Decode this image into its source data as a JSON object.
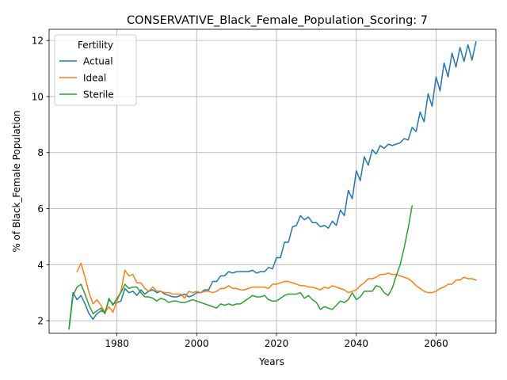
{
  "chart_data": {
    "type": "line",
    "title": "CONSERVATIVE_Black_Female_Population_Scoring: 7",
    "xlabel": "Years",
    "ylabel": "% of Black_Female Population",
    "xlim": [
      1963,
      2075
    ],
    "ylim": [
      1.55,
      12.4
    ],
    "xticks": [
      1980,
      2000,
      2020,
      2040,
      2060
    ],
    "yticks": [
      2,
      4,
      6,
      8,
      10,
      12
    ],
    "grid": true,
    "legend": {
      "title": "Fertility",
      "placement": "upper-left"
    },
    "series": [
      {
        "name": "Actual",
        "color": "#1f77b4",
        "x": [
          1968,
          1969,
          1970,
          1971,
          1972,
          1973,
          1974,
          1975,
          1976,
          1977,
          1978,
          1979,
          1980,
          1981,
          1982,
          1983,
          1984,
          1985,
          1986,
          1987,
          1988,
          1989,
          1990,
          1991,
          1992,
          1993,
          1994,
          1995,
          1996,
          1997,
          1998,
          1999,
          2000,
          2001,
          2002,
          2003,
          2004,
          2005,
          2006,
          2007,
          2008,
          2009,
          2010,
          2011,
          2012,
          2013,
          2014,
          2015,
          2016,
          2017,
          2018,
          2019,
          2020,
          2021,
          2022,
          2023,
          2024,
          2025,
          2026,
          2027,
          2028,
          2029,
          2030,
          2031,
          2032,
          2033,
          2034,
          2035,
          2036,
          2037,
          2038,
          2039,
          2040,
          2041,
          2042,
          2043,
          2044,
          2045,
          2046,
          2047,
          2048,
          2049,
          2050,
          2051,
          2052,
          2053,
          2054,
          2055,
          2056,
          2057,
          2058,
          2059,
          2060,
          2061,
          2062,
          2063,
          2064,
          2065,
          2066,
          2067,
          2068,
          2069,
          2070
        ],
        "values": [
          1.75,
          3.0,
          2.75,
          2.9,
          2.6,
          2.25,
          2.05,
          2.25,
          2.35,
          2.3,
          2.75,
          2.6,
          2.65,
          2.7,
          3.15,
          3.0,
          3.05,
          2.9,
          3.1,
          2.95,
          3.05,
          3.1,
          3.0,
          3.05,
          2.95,
          2.9,
          2.85,
          2.85,
          2.9,
          2.95,
          2.85,
          2.9,
          3.0,
          3.0,
          3.1,
          3.1,
          3.4,
          3.4,
          3.6,
          3.6,
          3.75,
          3.7,
          3.75,
          3.75,
          3.75,
          3.75,
          3.8,
          3.7,
          3.75,
          3.75,
          3.9,
          3.85,
          4.25,
          4.25,
          4.8,
          4.8,
          5.35,
          5.4,
          5.75,
          5.6,
          5.7,
          5.5,
          5.5,
          5.35,
          5.4,
          5.3,
          5.55,
          5.4,
          5.95,
          5.75,
          6.65,
          6.35,
          7.35,
          7.0,
          7.85,
          7.55,
          8.1,
          7.95,
          8.25,
          8.15,
          8.3,
          8.25,
          8.3,
          8.35,
          8.5,
          8.45,
          8.9,
          8.75,
          9.45,
          9.1,
          10.1,
          9.65,
          10.7,
          10.2,
          11.2,
          10.7,
          11.55,
          11.05,
          11.75,
          11.25,
          11.85,
          11.3,
          11.95
        ]
      },
      {
        "name": "Ideal",
        "color": "#ff7f0e",
        "x": [
          1970,
          1971,
          1972,
          1973,
          1974,
          1975,
          1976,
          1977,
          1978,
          1979,
          1980,
          1981,
          1982,
          1983,
          1984,
          1985,
          1986,
          1987,
          1988,
          1989,
          1990,
          1991,
          1992,
          1993,
          1994,
          1995,
          1996,
          1997,
          1998,
          1999,
          2000,
          2001,
          2002,
          2003,
          2004,
          2005,
          2006,
          2007,
          2008,
          2009,
          2010,
          2011,
          2012,
          2013,
          2014,
          2015,
          2016,
          2017,
          2018,
          2019,
          2020,
          2021,
          2022,
          2023,
          2024,
          2025,
          2026,
          2027,
          2028,
          2029,
          2030,
          2031,
          2032,
          2033,
          2034,
          2035,
          2036,
          2037,
          2038,
          2039,
          2040,
          2041,
          2042,
          2043,
          2044,
          2045,
          2046,
          2047,
          2048,
          2049,
          2050,
          2051,
          2052,
          2053,
          2054,
          2055,
          2056,
          2057,
          2058,
          2059,
          2060,
          2061,
          2062,
          2063,
          2064,
          2065,
          2066,
          2067,
          2068,
          2069,
          2070
        ],
        "values": [
          3.75,
          4.05,
          3.55,
          3.0,
          2.6,
          2.75,
          2.55,
          2.3,
          2.5,
          2.3,
          2.7,
          3.05,
          3.8,
          3.6,
          3.65,
          3.35,
          3.35,
          3.15,
          3.05,
          3.2,
          3.05,
          3.05,
          3.0,
          3.0,
          2.95,
          2.95,
          2.95,
          2.8,
          3.05,
          3.0,
          3.05,
          3.0,
          3.05,
          3.05,
          3.0,
          3.05,
          3.15,
          3.15,
          3.25,
          3.15,
          3.15,
          3.1,
          3.1,
          3.15,
          3.2,
          3.2,
          3.2,
          3.2,
          3.15,
          3.3,
          3.3,
          3.35,
          3.4,
          3.4,
          3.35,
          3.3,
          3.25,
          3.25,
          3.2,
          3.2,
          3.15,
          3.1,
          3.2,
          3.15,
          3.25,
          3.2,
          3.15,
          3.1,
          3.0,
          3.05,
          3.1,
          3.25,
          3.35,
          3.5,
          3.5,
          3.55,
          3.65,
          3.65,
          3.7,
          3.65,
          3.65,
          3.6,
          3.55,
          3.5,
          3.4,
          3.25,
          3.15,
          3.05,
          3.0,
          3.0,
          3.05,
          3.15,
          3.2,
          3.3,
          3.3,
          3.45,
          3.45,
          3.55,
          3.5,
          3.5,
          3.45
        ]
      },
      {
        "name": "Sterile",
        "color": "#2ca02c",
        "x": [
          1968,
          1969,
          1970,
          1971,
          1972,
          1973,
          1974,
          1975,
          1976,
          1977,
          1978,
          1979,
          1980,
          1981,
          1982,
          1983,
          1984,
          1985,
          1986,
          1987,
          1988,
          1989,
          1990,
          1991,
          1992,
          1993,
          1994,
          1995,
          1996,
          1997,
          1998,
          1999,
          2000,
          2001,
          2002,
          2003,
          2004,
          2005,
          2006,
          2007,
          2008,
          2009,
          2010,
          2011,
          2012,
          2013,
          2014,
          2015,
          2016,
          2017,
          2018,
          2019,
          2020,
          2021,
          2022,
          2023,
          2024,
          2025,
          2026,
          2027,
          2028,
          2029,
          2030,
          2031,
          2032,
          2033,
          2034,
          2035,
          2036,
          2037,
          2038,
          2039,
          2040,
          2041,
          2042,
          2043,
          2044,
          2045,
          2046,
          2047,
          2048,
          2049,
          2050,
          2051,
          2052,
          2053,
          2054
        ],
        "values": [
          1.7,
          2.9,
          3.2,
          3.3,
          2.95,
          2.55,
          2.25,
          2.35,
          2.45,
          2.25,
          2.8,
          2.55,
          2.8,
          3.0,
          3.3,
          3.15,
          3.2,
          3.2,
          3.0,
          2.85,
          2.85,
          2.8,
          2.7,
          2.8,
          2.75,
          2.65,
          2.7,
          2.7,
          2.65,
          2.65,
          2.7,
          2.75,
          2.7,
          2.65,
          2.6,
          2.55,
          2.5,
          2.45,
          2.6,
          2.55,
          2.6,
          2.55,
          2.6,
          2.6,
          2.7,
          2.8,
          2.9,
          2.85,
          2.85,
          2.9,
          2.75,
          2.7,
          2.7,
          2.8,
          2.9,
          2.95,
          2.95,
          2.95,
          3.0,
          2.8,
          2.9,
          2.75,
          2.65,
          2.4,
          2.5,
          2.45,
          2.4,
          2.55,
          2.7,
          2.65,
          2.75,
          3.0,
          2.75,
          2.85,
          3.05,
          3.05,
          3.05,
          3.25,
          3.2,
          3.0,
          2.9,
          3.15,
          3.6,
          4.0,
          4.6,
          5.3,
          6.1
        ]
      }
    ]
  }
}
